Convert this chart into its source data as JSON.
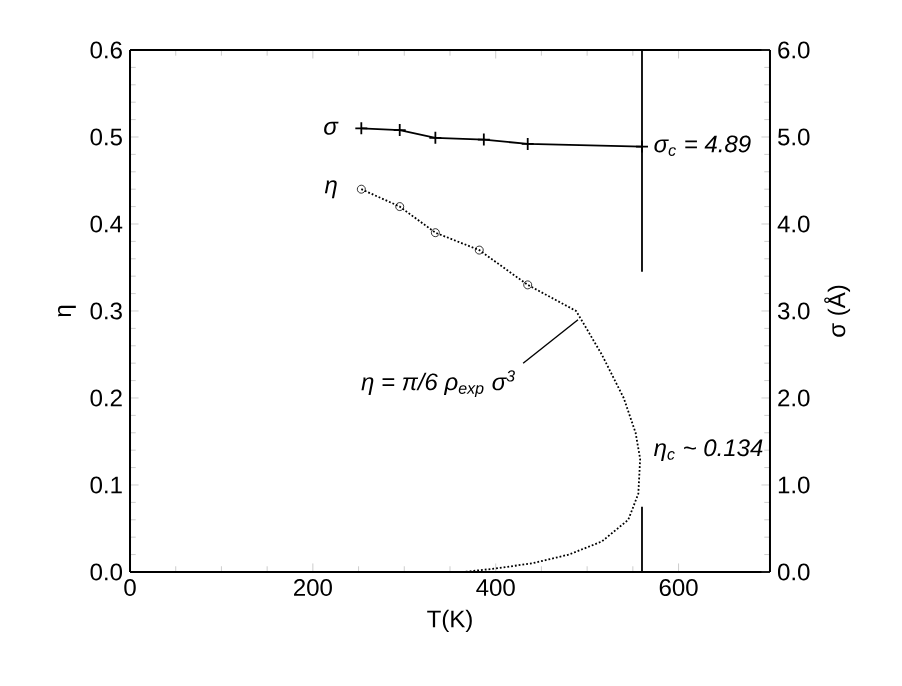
{
  "chart_data": {
    "type": "line",
    "xlabel": "T(K)",
    "ylabel": "η",
    "y2label": "σ (Å)",
    "xlim": [
      0,
      700
    ],
    "xticks": [
      0,
      200,
      400,
      600
    ],
    "ylim": [
      0,
      0.6
    ],
    "yticks": [
      {
        "value": 0,
        "label": "0.0"
      },
      0.1,
      0.2,
      0.3,
      0.4,
      0.5,
      0.6
    ],
    "y2lim": [
      0,
      6
    ],
    "y2ticks": [
      {
        "value": 0,
        "label": "0.0"
      },
      {
        "value": 1,
        "label": "1.0"
      },
      {
        "value": 2,
        "label": "2.0"
      },
      {
        "value": 3,
        "label": "3.0"
      },
      {
        "value": 4,
        "label": "4.0"
      },
      {
        "value": 5,
        "label": "5.0"
      },
      {
        "value": 6,
        "label": "6.0"
      }
    ],
    "grid": false,
    "series": [
      {
        "axis": "y2",
        "marker": "cross",
        "line_style": "solid",
        "color": "#000000",
        "x": [
          253,
          295,
          334,
          387,
          435,
          560
        ],
        "values": [
          5.1,
          5.08,
          4.99,
          4.97,
          4.92,
          4.89
        ]
      },
      {
        "type": "scatter",
        "marker": "circle",
        "color": "#000000",
        "x": [
          253,
          295,
          334,
          382,
          435
        ],
        "values": [
          0.44,
          0.42,
          0.39,
          0.37,
          0.33
        ]
      },
      {
        "marker": "none",
        "line_style": "dotted",
        "color": "#000000",
        "x": [
          253,
          295,
          334,
          382,
          435,
          488,
          516,
          540,
          553,
          558,
          556,
          545,
          516,
          480,
          440,
          400,
          365
        ],
        "values": [
          0.44,
          0.42,
          0.39,
          0.37,
          0.33,
          0.3,
          0.25,
          0.2,
          0.16,
          0.13,
          0.09,
          0.06,
          0.035,
          0.02,
          0.01,
          0.004,
          0.0
        ]
      },
      {
        "axis": "y2",
        "marker": "none",
        "line_style": "solid",
        "color": "#000000",
        "x": [
          560,
          560
        ],
        "values": [
          6.0,
          3.45
        ]
      },
      {
        "axis": "y2",
        "marker": "none",
        "line_style": "solid",
        "color": "#000000",
        "x": [
          560,
          560
        ],
        "values": [
          0.75,
          0.0
        ]
      }
    ],
    "annotations": [
      "σ",
      "η",
      {
        "text": "η = π/6 ρ$_{exp}$ σ$^{3}$",
        "x": 490,
        "y": 0.29
      },
      "σ$_{c}$ = 4.89",
      "η$_{c}$ ~ 0.134"
    ]
  }
}
